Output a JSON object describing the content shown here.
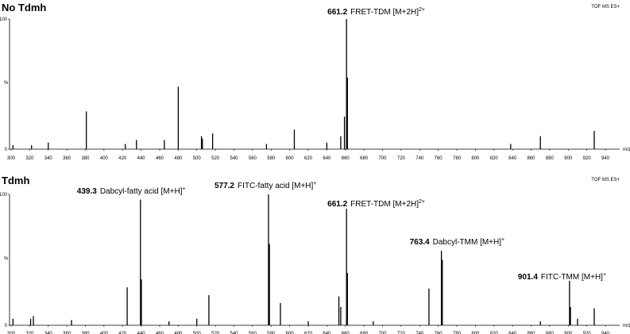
{
  "chart_data": [
    {
      "type": "bar",
      "title": "No Tdmh",
      "subtitle": "TOF MS ES+",
      "xlabel": "m/z",
      "ylabel": "%",
      "x": [
        302,
        322,
        340,
        381,
        423,
        435,
        465,
        480,
        505,
        506,
        517,
        575,
        605,
        640,
        655,
        659,
        661.2,
        662.2,
        838,
        870,
        928
      ],
      "values": [
        3,
        3,
        5,
        29,
        4,
        7,
        7,
        48,
        10,
        8,
        12,
        4,
        15,
        5,
        10,
        25,
        100,
        55,
        4,
        10,
        14
      ],
      "color": "#000000",
      "xlim": [
        300,
        950
      ],
      "xticks": [
        300,
        320,
        340,
        360,
        380,
        400,
        420,
        440,
        460,
        480,
        500,
        520,
        540,
        560,
        580,
        600,
        620,
        640,
        660,
        680,
        700,
        720,
        740,
        760,
        780,
        800,
        820,
        840,
        860,
        880,
        900,
        920,
        940
      ],
      "ylim": [
        0,
        100
      ],
      "yticks": [
        0,
        100
      ],
      "annotations": [
        {
          "x": 661.2,
          "text": "FRET-TDM [M+2H]",
          "charge": "2+"
        }
      ]
    },
    {
      "type": "bar",
      "title": "Tdmh",
      "subtitle": "TOF MS ES+",
      "xlabel": "m/z",
      "ylabel": "%",
      "x": [
        302,
        321,
        324,
        365,
        425,
        439.3,
        440.3,
        470,
        500,
        513,
        577.2,
        578.2,
        590,
        620,
        653,
        655,
        661.2,
        662.2,
        690,
        750,
        763.4,
        764.4,
        870,
        901.4,
        902.4,
        910,
        928
      ],
      "values": [
        5,
        5,
        7,
        4,
        29,
        96,
        35,
        3,
        5,
        23,
        100,
        62,
        17,
        3,
        22,
        14,
        89,
        40,
        3,
        28,
        57,
        50,
        3,
        34,
        14,
        5,
        13
      ],
      "color": "#000000",
      "xlim": [
        300,
        950
      ],
      "xticks": [
        300,
        320,
        340,
        360,
        380,
        400,
        420,
        440,
        460,
        480,
        500,
        520,
        540,
        560,
        580,
        600,
        620,
        640,
        660,
        680,
        700,
        720,
        740,
        760,
        780,
        800,
        820,
        840,
        860,
        880,
        900,
        920,
        940
      ],
      "ylim": [
        0,
        100
      ],
      "yticks": [
        0,
        100
      ],
      "annotations": [
        {
          "x": 439.3,
          "text": "Dabcyl-fatty acid [M+H]",
          "charge": "+"
        },
        {
          "x": 577.2,
          "text": "FITC-fatty acid [M+H]",
          "charge": "+"
        },
        {
          "x": 661.2,
          "text": "FRET-TDM [M+2H]",
          "charge": "2+"
        },
        {
          "x": 763.4,
          "text": "Dabcyl-TMM [M+H]",
          "charge": "+"
        },
        {
          "x": 901.4,
          "text": "FITC-TMM [M+H]",
          "charge": "+"
        }
      ]
    }
  ]
}
